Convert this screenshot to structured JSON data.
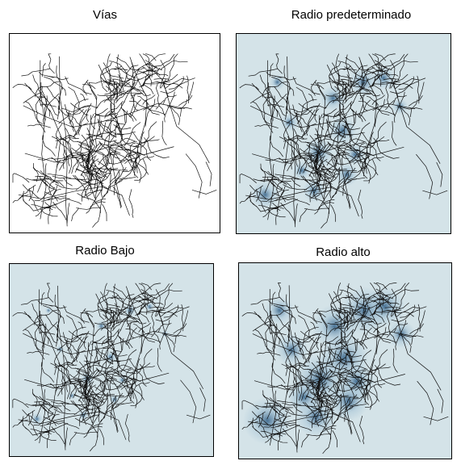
{
  "panels": [
    {
      "title": "Vías",
      "background": "#ffffff",
      "heat": "none"
    },
    {
      "title": "Radio predeterminado",
      "background": "#d4e3e8",
      "heat": "default"
    },
    {
      "title": "Radio Bajo",
      "background": "#d4e3e8",
      "heat": "low"
    },
    {
      "title": "Radio alto",
      "background": "#d4e3e8",
      "heat": "high"
    }
  ],
  "colors": {
    "road": "#111111",
    "heat_light": "#9fbfd3",
    "heat_dark": "#2f5d85"
  }
}
